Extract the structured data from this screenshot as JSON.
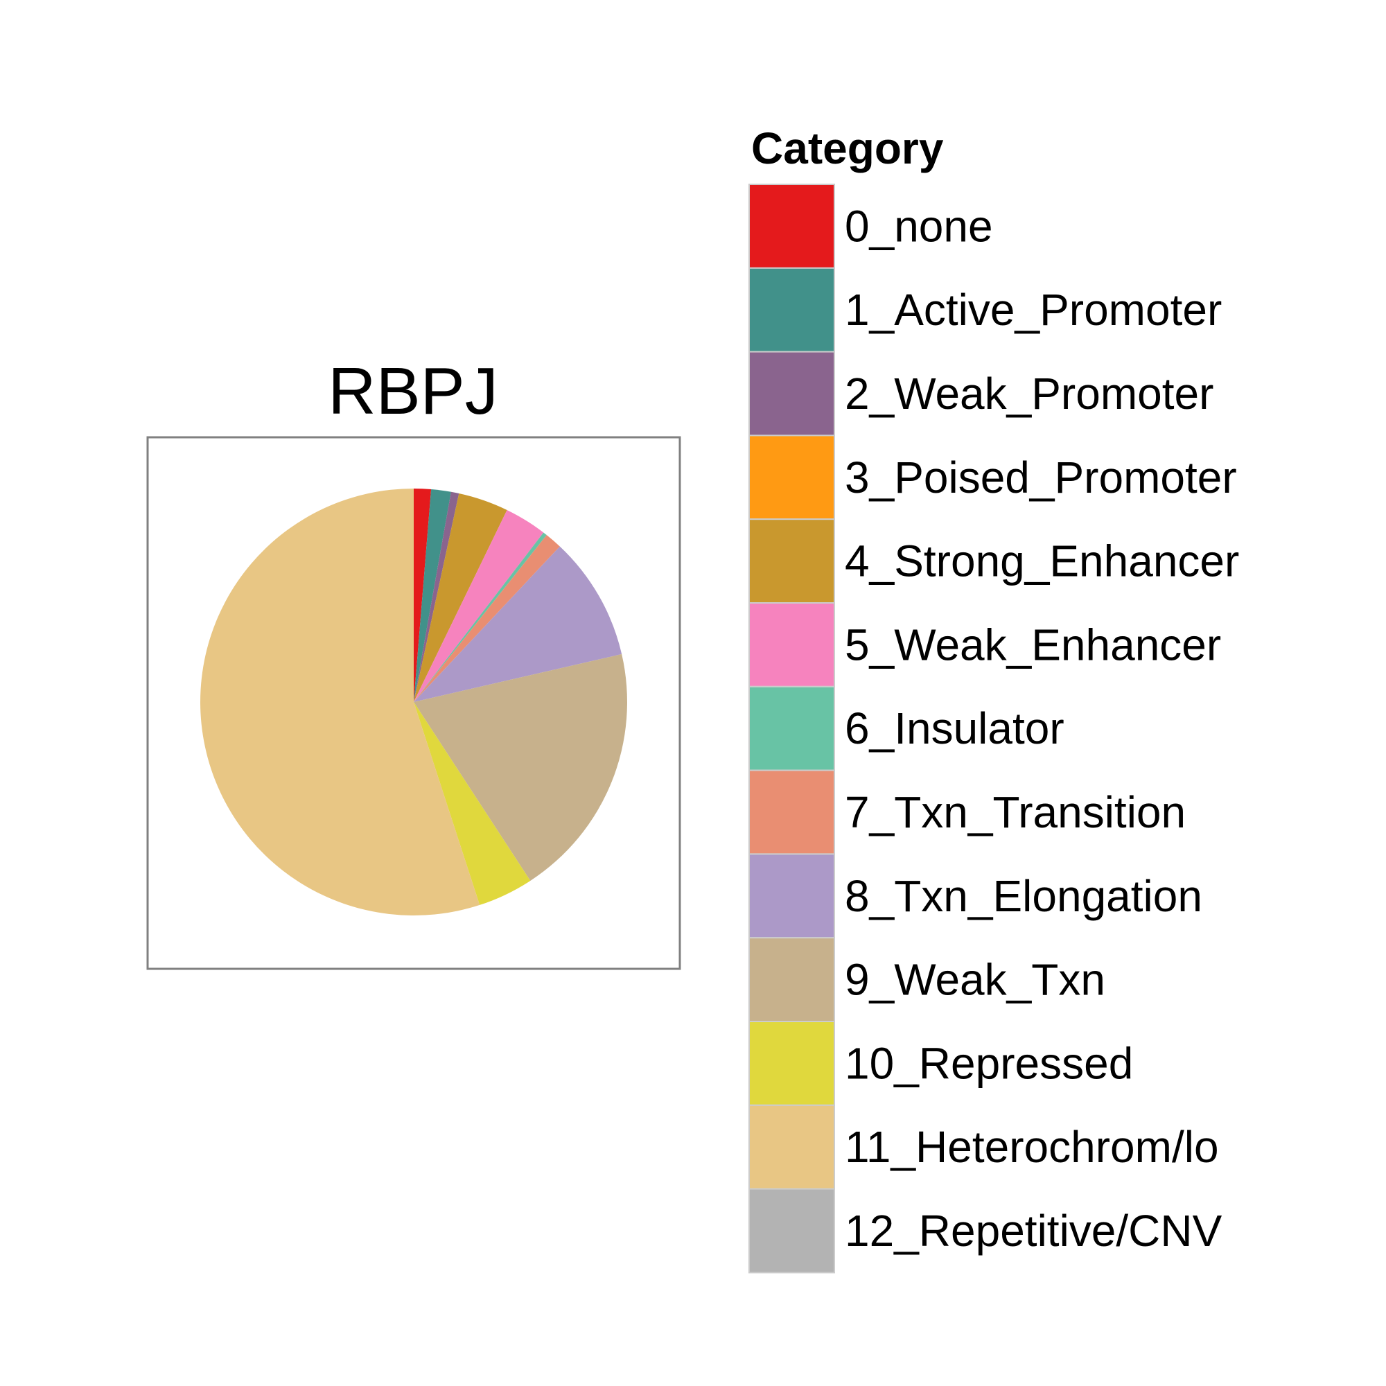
{
  "chart_data": {
    "type": "pie",
    "title": "RBPJ",
    "legend_title": "Category",
    "legend_position": "right",
    "start_angle_deg": 0,
    "direction": "clockwise",
    "categories": [
      "0_none",
      "1_Active_Promoter",
      "2_Weak_Promoter",
      "3_Poised_Promoter",
      "4_Strong_Enhancer",
      "5_Weak_Enhancer",
      "6_Insulator",
      "7_Txn_Transition",
      "8_Txn_Elongation",
      "9_Weak_Txn",
      "10_Repressed",
      "11_Heterochrom/lo",
      "12_Repetitive/CNV"
    ],
    "values": [
      1.3,
      1.5,
      0.6,
      0.0,
      3.8,
      3.2,
      0.3,
      1.3,
      9.4,
      19.4,
      4.2,
      55.0,
      0.0
    ],
    "colors": [
      "#E41A1C",
      "#41918A",
      "#8A648E",
      "#FF9A13",
      "#C9982E",
      "#F683BE",
      "#68C3A5",
      "#E98E72",
      "#AC99C8",
      "#C7B18C",
      "#E0D83D",
      "#E8C684",
      "#B3B3B3"
    ]
  }
}
